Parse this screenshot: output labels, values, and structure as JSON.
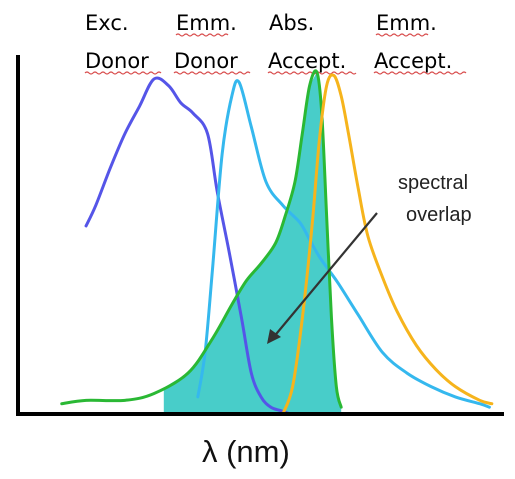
{
  "chart_data": {
    "type": "line",
    "title": "",
    "xlabel": "λ (nm)",
    "ylabel": "",
    "grid": false,
    "legend_placement": "top",
    "legend": [
      {
        "line1": "Exc.",
        "line2": "Donor",
        "series_index": 0
      },
      {
        "line1": "Emm.",
        "line2": "Donor",
        "series_index": 1
      },
      {
        "line1": "Abs.",
        "line2": "Accept.",
        "series_index": 2
      },
      {
        "line1": "Emm.",
        "line2": "Accept.",
        "series_index": 3
      }
    ],
    "annotation": {
      "text_line1": "spectral",
      "text_line2": "overlap"
    },
    "series": [
      {
        "name": "Exc. Donor",
        "color": "#5555e8",
        "x": [
          0.14,
          0.16,
          0.19,
          0.22,
          0.25,
          0.28,
          0.31,
          0.335,
          0.36,
          0.39,
          0.41,
          0.435,
          0.46,
          0.48,
          0.5,
          0.52,
          0.54,
          0.56
        ],
        "y": [
          0.55,
          0.61,
          0.72,
          0.82,
          0.9,
          0.98,
          0.96,
          0.91,
          0.88,
          0.82,
          0.65,
          0.47,
          0.28,
          0.12,
          0.05,
          0.02,
          0.01,
          0.0
        ]
      },
      {
        "name": "Emm. Donor",
        "color": "#35b8ee",
        "x": [
          0.37,
          0.385,
          0.4,
          0.42,
          0.44,
          0.455,
          0.48,
          0.51,
          0.545,
          0.58,
          0.6,
          0.62,
          0.64,
          0.66,
          0.7,
          0.75,
          0.8,
          0.85,
          0.9,
          0.95,
          0.97
        ],
        "y": [
          0.05,
          0.18,
          0.42,
          0.76,
          0.93,
          0.97,
          0.84,
          0.68,
          0.61,
          0.56,
          0.51,
          0.46,
          0.42,
          0.38,
          0.29,
          0.18,
          0.12,
          0.08,
          0.05,
          0.03,
          0.02
        ]
      },
      {
        "name": "Abs. Accept.",
        "color": "#2ab834",
        "x": [
          0.09,
          0.14,
          0.22,
          0.28,
          0.35,
          0.4,
          0.44,
          0.47,
          0.5,
          0.53,
          0.55,
          0.57,
          0.585,
          0.6,
          0.615,
          0.625,
          0.635,
          0.645,
          0.655,
          0.665
        ],
        "y": [
          0.03,
          0.04,
          0.04,
          0.06,
          0.12,
          0.22,
          0.32,
          0.39,
          0.44,
          0.5,
          0.58,
          0.68,
          0.82,
          0.96,
          1.0,
          0.88,
          0.58,
          0.28,
          0.08,
          0.02
        ]
      },
      {
        "name": "Emm. Accept.",
        "color": "#f6b41c",
        "x": [
          0.545,
          0.565,
          0.585,
          0.605,
          0.62,
          0.635,
          0.65,
          0.665,
          0.68,
          0.7,
          0.72,
          0.75,
          0.78,
          0.82,
          0.86,
          0.9,
          0.95,
          0.975
        ],
        "y": [
          0.0,
          0.08,
          0.28,
          0.55,
          0.8,
          0.96,
          0.99,
          0.93,
          0.82,
          0.66,
          0.52,
          0.4,
          0.3,
          0.2,
          0.13,
          0.08,
          0.04,
          0.03
        ]
      }
    ],
    "overlap_fill": {
      "color": "#48cdc9",
      "x_start": 0.3,
      "x_end": 0.665
    },
    "xlim": [
      0,
      1
    ],
    "ylim": [
      0,
      1.05
    ]
  }
}
